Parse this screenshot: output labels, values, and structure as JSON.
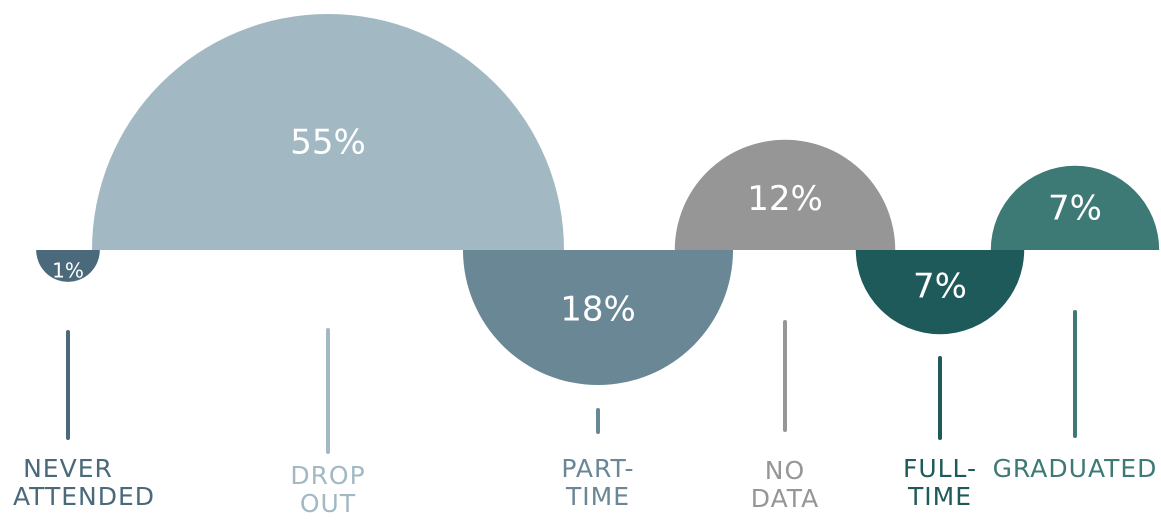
{
  "chart_data": {
    "type": "semicircle",
    "categories": [
      "NEVER ATTENDED",
      "DROP OUT",
      "PART-TIME",
      "NO DATA",
      "FULL-TIME",
      "GRADUATED"
    ],
    "values": [
      1,
      55,
      18,
      12,
      7,
      7
    ],
    "value_labels": [
      "1%",
      "55%",
      "18%",
      "12%",
      "7%",
      "7%"
    ],
    "colors": [
      "#4a6a7c",
      "#a2b9c4",
      "#6a8796",
      "#969696",
      "#1f5a5a",
      "#3d7a76"
    ]
  }
}
